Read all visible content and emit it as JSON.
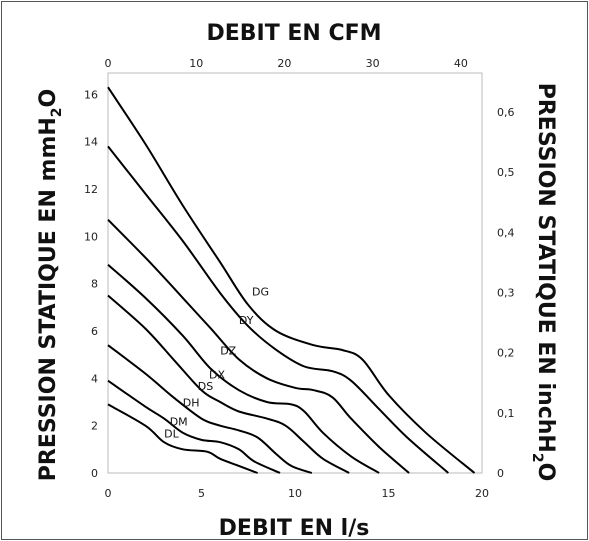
{
  "chart_data": {
    "type": "line",
    "top_axis_title": "DEBIT EN CFM",
    "bottom_axis_title": "DEBIT EN l/s",
    "left_axis_title": "PRESSION STATIQUE EN mmH",
    "left_axis_sub": "2",
    "left_axis_tail": "O",
    "right_axis_title": "PRESSION STATIQUE EN inchH",
    "right_axis_sub": "2",
    "right_axis_tail": "O",
    "x_ticks": [
      "0",
      "5",
      "10",
      "15",
      "20"
    ],
    "x_tick_values": [
      0,
      5,
      10,
      15,
      20
    ],
    "xlim": [
      0,
      20
    ],
    "y_ticks": [
      "0",
      "2",
      "4",
      "6",
      "8",
      "10",
      "12",
      "14",
      "16"
    ],
    "y_tick_values": [
      0,
      2,
      4,
      6,
      8,
      10,
      12,
      14,
      16
    ],
    "ylim": [
      0,
      16.9
    ],
    "top_ticks": [
      "0",
      "10",
      "20",
      "30",
      "40"
    ],
    "top_tick_values": [
      0,
      10,
      20,
      30,
      40
    ],
    "top_lim": [
      0,
      42.4
    ],
    "right_ticks": [
      "0",
      "0,1",
      "0,2",
      "0,3",
      "0,4",
      "0,5",
      "0,6"
    ],
    "right_tick_values": [
      0,
      0.1,
      0.2,
      0.3,
      0.4,
      0.5,
      0.6
    ],
    "right_lim": [
      0,
      0.665
    ],
    "series": [
      {
        "name": "DG",
        "points": [
          [
            0,
            16.3
          ],
          [
            2,
            13.9
          ],
          [
            4,
            11.3
          ],
          [
            6,
            8.9
          ],
          [
            7.5,
            7.1
          ],
          [
            9,
            6.0
          ],
          [
            11,
            5.4
          ],
          [
            12.5,
            5.2
          ],
          [
            13.6,
            4.8
          ],
          [
            15,
            3.3
          ],
          [
            17,
            1.7
          ],
          [
            19.6,
            0
          ]
        ]
      },
      {
        "name": "DY",
        "points": [
          [
            0,
            13.8
          ],
          [
            2,
            11.8
          ],
          [
            4,
            9.8
          ],
          [
            6,
            7.6
          ],
          [
            7.5,
            6.2
          ],
          [
            9,
            5.2
          ],
          [
            10.5,
            4.5
          ],
          [
            12,
            4.3
          ],
          [
            13,
            3.9
          ],
          [
            14.5,
            2.7
          ],
          [
            16,
            1.5
          ],
          [
            18.2,
            0
          ]
        ]
      },
      {
        "name": "DZ",
        "points": [
          [
            0,
            10.7
          ],
          [
            2,
            9.1
          ],
          [
            4,
            7.4
          ],
          [
            5.5,
            6.1
          ],
          [
            7,
            4.8
          ],
          [
            8.5,
            4.0
          ],
          [
            10,
            3.6
          ],
          [
            11,
            3.5
          ],
          [
            12,
            3.2
          ],
          [
            13,
            2.3
          ],
          [
            14.5,
            1.1
          ],
          [
            16.1,
            0
          ]
        ]
      },
      {
        "name": "DX",
        "points": [
          [
            0,
            8.8
          ],
          [
            2,
            7.4
          ],
          [
            4,
            5.8
          ],
          [
            5.5,
            4.4
          ],
          [
            7,
            3.5
          ],
          [
            8.5,
            3.0
          ],
          [
            9.8,
            2.9
          ],
          [
            10.5,
            2.6
          ],
          [
            11.5,
            1.7
          ],
          [
            13,
            0.7
          ],
          [
            14.5,
            0
          ]
        ]
      },
      {
        "name": "DS",
        "points": [
          [
            0,
            7.5
          ],
          [
            2,
            6.1
          ],
          [
            3.5,
            4.8
          ],
          [
            5,
            3.5
          ],
          [
            6,
            3.0
          ],
          [
            7,
            2.6
          ],
          [
            8.5,
            2.3
          ],
          [
            9.5,
            2.0
          ],
          [
            10.5,
            1.3
          ],
          [
            11.5,
            0.6
          ],
          [
            12.9,
            0
          ]
        ]
      },
      {
        "name": "DH",
        "points": [
          [
            0,
            5.4
          ],
          [
            2,
            4.2
          ],
          [
            3.5,
            3.2
          ],
          [
            5,
            2.3
          ],
          [
            6,
            2.0
          ],
          [
            7,
            1.8
          ],
          [
            8,
            1.5
          ],
          [
            9,
            0.8
          ],
          [
            9.8,
            0.3
          ],
          [
            10.9,
            0
          ]
        ]
      },
      {
        "name": "DM",
        "points": [
          [
            0,
            3.9
          ],
          [
            2,
            2.8
          ],
          [
            3,
            2.3
          ],
          [
            4,
            1.7
          ],
          [
            5,
            1.4
          ],
          [
            6,
            1.3
          ],
          [
            7,
            1.0
          ],
          [
            7.8,
            0.5
          ],
          [
            9.2,
            0
          ]
        ]
      },
      {
        "name": "DL",
        "points": [
          [
            0,
            2.9
          ],
          [
            2,
            2.0
          ],
          [
            3,
            1.3
          ],
          [
            4,
            1.0
          ],
          [
            5.3,
            0.9
          ],
          [
            6,
            0.6
          ],
          [
            7,
            0.3
          ],
          [
            8.0,
            0
          ]
        ]
      }
    ]
  }
}
